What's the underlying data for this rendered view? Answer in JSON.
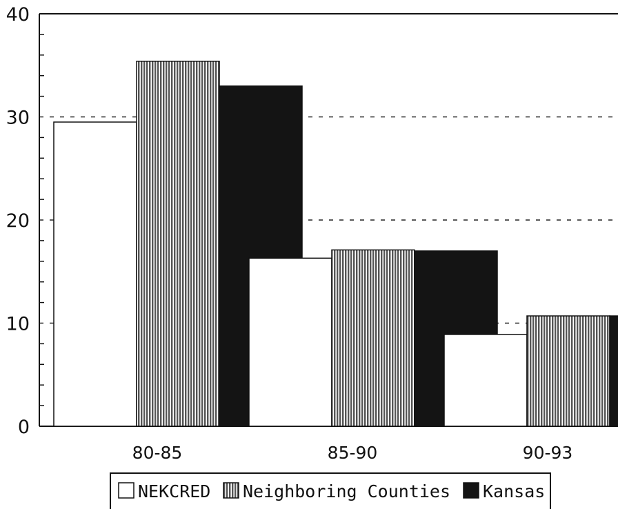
{
  "chart_data": {
    "type": "bar",
    "title": "",
    "xlabel": "",
    "ylabel": "",
    "ylim": [
      0,
      40
    ],
    "yticks": [
      0,
      10,
      20,
      30,
      40
    ],
    "grid": "dotted horizontal at 10, 20, 30",
    "legend_position": "bottom",
    "categories": [
      "80-85",
      "85-90",
      "90-93"
    ],
    "series": [
      {
        "name": "NEKCRED",
        "values": [
          29.5,
          16.3,
          8.9
        ],
        "style": "white",
        "color": "#ffffff"
      },
      {
        "name": "Neighboring Counties",
        "values": [
          35.4,
          17.1,
          10.7
        ],
        "style": "vertical-stripes",
        "color": "#888888"
      },
      {
        "name": "Kansas",
        "values": [
          33.0,
          17.0,
          10.7
        ],
        "style": "solid",
        "color": "#141414"
      }
    ]
  }
}
